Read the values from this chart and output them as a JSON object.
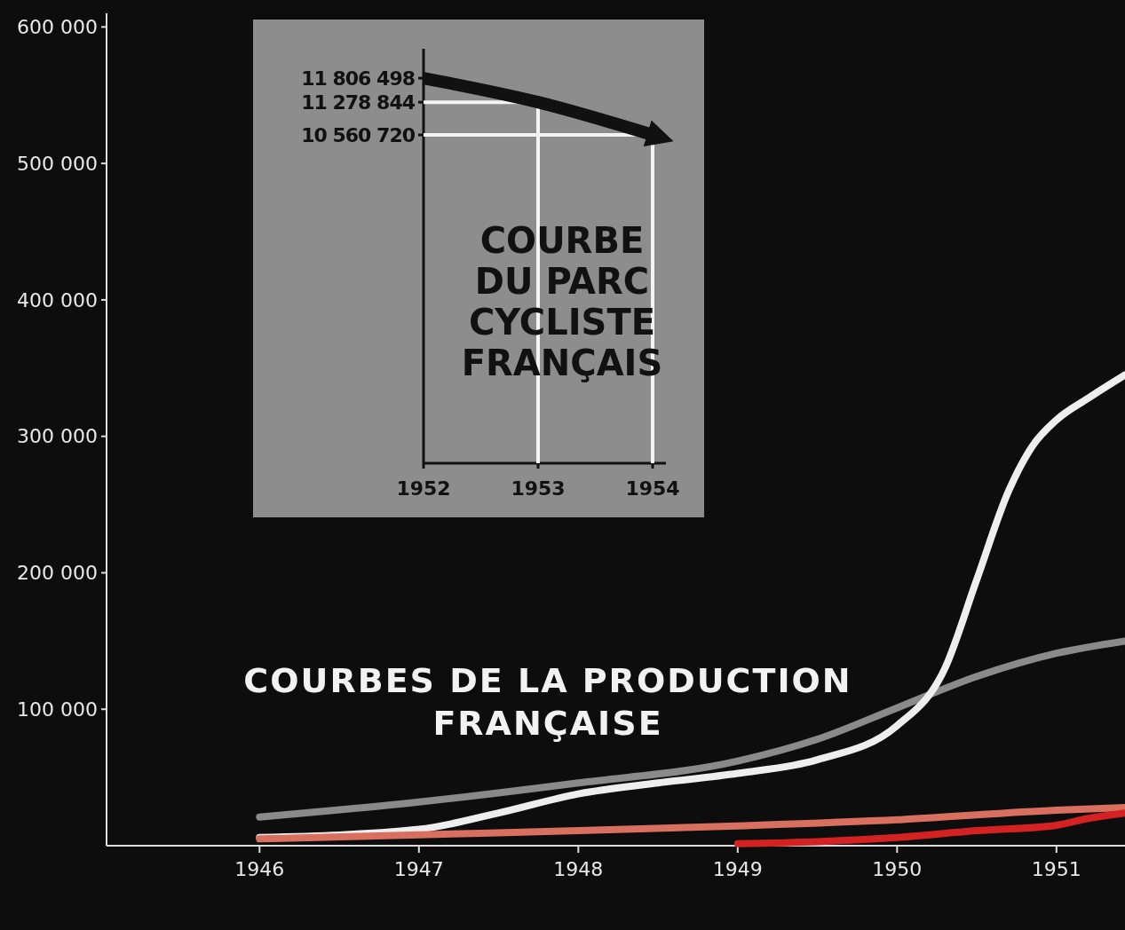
{
  "chart_data": [
    {
      "type": "line",
      "title": "COURBES DE LA PRODUCTION FRANÇAISE",
      "xlim": [
        1945.04,
        1951.43
      ],
      "ylim": [
        0,
        610000
      ],
      "xticks": [
        1946,
        1947,
        1948,
        1949,
        1950,
        1951
      ],
      "yticks": [
        {
          "value": 100000,
          "label": "100 000"
        },
        {
          "value": 200000,
          "label": "200 000"
        },
        {
          "value": 300000,
          "label": "300 000"
        },
        {
          "value": 400000,
          "label": "400 000"
        },
        {
          "value": 500000,
          "label": "500 000"
        },
        {
          "value": 600000,
          "label": "600 000"
        }
      ],
      "series": [
        {
          "color": "#8a8a8a",
          "x": [
            1946,
            1947,
            1948,
            1949,
            1949.5,
            1950,
            1950.5,
            1951,
            1951.43
          ],
          "values": [
            21000,
            32000,
            46000,
            62000,
            78000,
            101000,
            124000,
            141000,
            150000
          ]
        },
        {
          "color": "#eeeeee",
          "x": [
            1946,
            1947,
            1947.5,
            1948,
            1948.5,
            1949,
            1949.5,
            1950,
            1950.3,
            1950.5,
            1950.7,
            1950.85,
            1951,
            1951.2,
            1951.43
          ],
          "values": [
            6000,
            12000,
            24000,
            38000,
            46000,
            53000,
            63000,
            88000,
            130000,
            195000,
            260000,
            293000,
            312000,
            328000,
            345000
          ]
        },
        {
          "color": "#d9705f",
          "x": [
            1946,
            1947,
            1948,
            1949,
            1950,
            1951,
            1951.43
          ],
          "values": [
            5000,
            8000,
            11000,
            14500,
            19000,
            26000,
            28000
          ]
        },
        {
          "color": "#d42222",
          "x": [
            1949,
            1949.5,
            1950,
            1950.5,
            1951,
            1951.2,
            1951.43
          ],
          "values": [
            1500,
            3000,
            6000,
            11000,
            15000,
            20000,
            24000
          ]
        }
      ]
    },
    {
      "type": "line",
      "title": "COURBE DU PARC CYCLISTE FRANÇAIS",
      "categories": [
        "1952",
        "1953",
        "1954"
      ],
      "ylim": [
        3360000,
        12450000
      ],
      "yticks": [
        {
          "value": 11806498,
          "label": "11 806 498"
        },
        {
          "value": 11278844,
          "label": "11 278 844"
        },
        {
          "value": 10560720,
          "label": "10 560 720"
        }
      ],
      "series": [
        {
          "color": "#111111",
          "values": [
            11806498,
            11278844,
            10560720
          ]
        }
      ],
      "ref_lines": [
        {
          "axis": "y",
          "value": 11278844,
          "color": "#f4f4f4"
        },
        {
          "axis": "y",
          "value": 10560720,
          "color": "#f4f4f4"
        },
        {
          "axis": "x",
          "value": "1953",
          "color": "#f4f4f4"
        },
        {
          "axis": "x",
          "value": "1954",
          "color": "#f4f4f4"
        }
      ]
    }
  ]
}
